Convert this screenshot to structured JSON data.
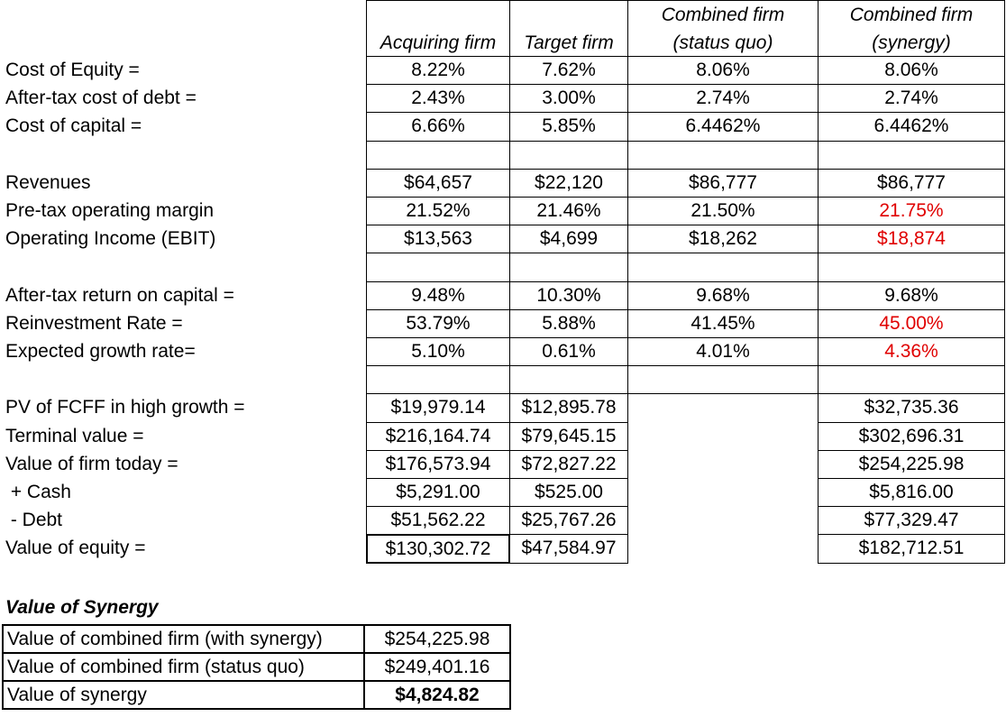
{
  "headers": [
    {
      "line1": "",
      "line2": "Acquiring firm"
    },
    {
      "line1": "",
      "line2": "Target firm"
    },
    {
      "line1": "Combined firm",
      "line2": "(status quo)"
    },
    {
      "line1": "Combined firm",
      "line2": "(synergy)"
    }
  ],
  "rows": [
    {
      "label": "Cost of Equity =",
      "values": [
        "8.22%",
        "7.62%",
        "8.06%",
        "8.06%"
      ],
      "red": [
        false,
        false,
        false,
        false
      ]
    },
    {
      "label": "After-tax cost of debt =",
      "values": [
        "2.43%",
        "3.00%",
        "2.74%",
        "2.74%"
      ],
      "red": [
        false,
        false,
        false,
        false
      ]
    },
    {
      "label": "Cost of capital =",
      "values": [
        "6.66%",
        "5.85%",
        "6.4462%",
        "6.4462%"
      ],
      "red": [
        false,
        false,
        false,
        false
      ]
    },
    {
      "label": "",
      "values": [
        "",
        "",
        "",
        ""
      ],
      "red": [
        false,
        false,
        false,
        false
      ]
    },
    {
      "label": "Revenues",
      "values": [
        "$64,657",
        "$22,120",
        "$86,777",
        "$86,777"
      ],
      "red": [
        false,
        false,
        false,
        false
      ]
    },
    {
      "label": "Pre-tax operating margin",
      "values": [
        "21.52%",
        "21.46%",
        "21.50%",
        "21.75%"
      ],
      "red": [
        false,
        false,
        false,
        true
      ]
    },
    {
      "label": "Operating Income (EBIT)",
      "values": [
        "$13,563",
        "$4,699",
        "$18,262",
        "$18,874"
      ],
      "red": [
        false,
        false,
        false,
        true
      ]
    },
    {
      "label": "",
      "values": [
        "",
        "",
        "",
        ""
      ],
      "red": [
        false,
        false,
        false,
        false
      ]
    },
    {
      "label": "After-tax return on capital =",
      "values": [
        "9.48%",
        "10.30%",
        "9.68%",
        "9.68%"
      ],
      "red": [
        false,
        false,
        false,
        false
      ]
    },
    {
      "label": "Reinvestment Rate =",
      "values": [
        "53.79%",
        "5.88%",
        "41.45%",
        "45.00%"
      ],
      "red": [
        false,
        false,
        false,
        true
      ]
    },
    {
      "label": "Expected growth rate=",
      "values": [
        "5.10%",
        "0.61%",
        "4.01%",
        "4.36%"
      ],
      "red": [
        false,
        false,
        false,
        true
      ]
    },
    {
      "label": "",
      "values": [
        "",
        "",
        "",
        ""
      ],
      "red": [
        false,
        false,
        false,
        false
      ]
    },
    {
      "label": "PV of FCFF in high growth =",
      "values": [
        "$19,979.14",
        "$12,895.78",
        null,
        "$32,735.36"
      ],
      "red": [
        false,
        false,
        false,
        false
      ]
    },
    {
      "label": "Terminal value =",
      "values": [
        "$216,164.74",
        "$79,645.15",
        null,
        "$302,696.31"
      ],
      "red": [
        false,
        false,
        false,
        false
      ]
    },
    {
      "label": "Value of firm today =",
      "values": [
        "$176,573.94",
        "$72,827.22",
        null,
        "$254,225.98"
      ],
      "red": [
        false,
        false,
        false,
        false
      ]
    },
    {
      "label": " + Cash",
      "values": [
        "$5,291.00",
        "$525.00",
        null,
        "$5,816.00"
      ],
      "red": [
        false,
        false,
        false,
        false
      ]
    },
    {
      "label": " - Debt",
      "values": [
        "$51,562.22",
        "$25,767.26",
        null,
        "$77,329.47"
      ],
      "red": [
        false,
        false,
        false,
        false
      ]
    },
    {
      "label": "Value of equity =",
      "values": [
        "$130,302.72",
        "$47,584.97",
        null,
        "$182,712.51"
      ],
      "red": [
        false,
        false,
        false,
        false
      ]
    }
  ],
  "synergy": {
    "title": "Value of Synergy",
    "rows": [
      {
        "label": "Value of combined firm (with synergy)",
        "value": "$254,225.98",
        "bold": false
      },
      {
        "label": "Value of combined firm (status quo)",
        "value": "$249,401.16",
        "bold": false
      },
      {
        "label": "Value of synergy",
        "value": "$4,824.82",
        "bold": true
      }
    ]
  },
  "colors": {
    "highlight": "#e00000"
  }
}
